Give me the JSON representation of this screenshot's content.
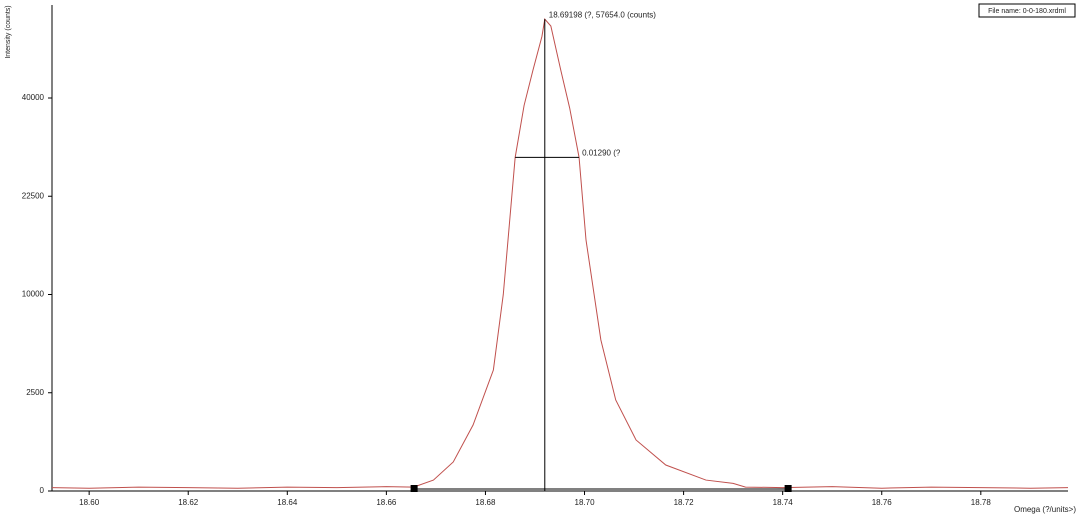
{
  "chart_data": {
    "type": "line",
    "y_label": "Intensity (counts)",
    "x_label": "Omega (?/units>)",
    "file_name": "File name: 0-0-180.xrdml",
    "peak_annotation": "18.69198 (?, 57654.0 (counts)",
    "fwhm_annotation": "0.01290 (?",
    "yscale": "sqrt",
    "x": [
      18.5925,
      18.6,
      18.61,
      18.62,
      18.63,
      18.64,
      18.65,
      18.66,
      18.6655,
      18.6695,
      18.6735,
      18.6775,
      18.6816,
      18.6836,
      18.686,
      18.6878,
      18.6896,
      18.6914,
      18.69198,
      18.6932,
      18.6952,
      18.697,
      18.6989,
      18.7003,
      18.7033,
      18.7063,
      18.7104,
      18.7164,
      18.7245,
      18.73,
      18.7325,
      18.74,
      18.75,
      18.76,
      18.77,
      18.78,
      18.79,
      18.7976
    ],
    "series": [
      {
        "color": "#c0504d",
        "values": [
          3,
          2,
          4,
          3,
          2,
          4,
          3,
          5,
          4,
          31,
          218,
          1128,
          3792,
          10000,
          28827,
          38500,
          45900,
          53500,
          57654,
          56000,
          45900,
          38000,
          28827,
          16316,
          5905,
          2145,
          674,
          175,
          31,
          15,
          4,
          3,
          5,
          2,
          4,
          3,
          2,
          3
        ]
      }
    ],
    "peak": {
      "x": 18.69198,
      "y": 57654
    },
    "fwhm": {
      "left": 18.686,
      "right": 18.6989,
      "level": 28827
    },
    "background": [
      18.6655,
      18.741
    ],
    "xlim": [
      18.5925,
      18.7976
    ],
    "ylim": [
      0,
      61170
    ],
    "xticks": [
      {
        "value": 18.6,
        "label": "18.60"
      },
      18.62,
      18.64,
      18.66,
      18.68,
      {
        "value": 18.7,
        "label": "18.70"
      },
      18.72,
      18.74,
      18.76,
      18.78
    ],
    "yticks": [
      0,
      2500,
      10000,
      22500,
      40000
    ]
  }
}
